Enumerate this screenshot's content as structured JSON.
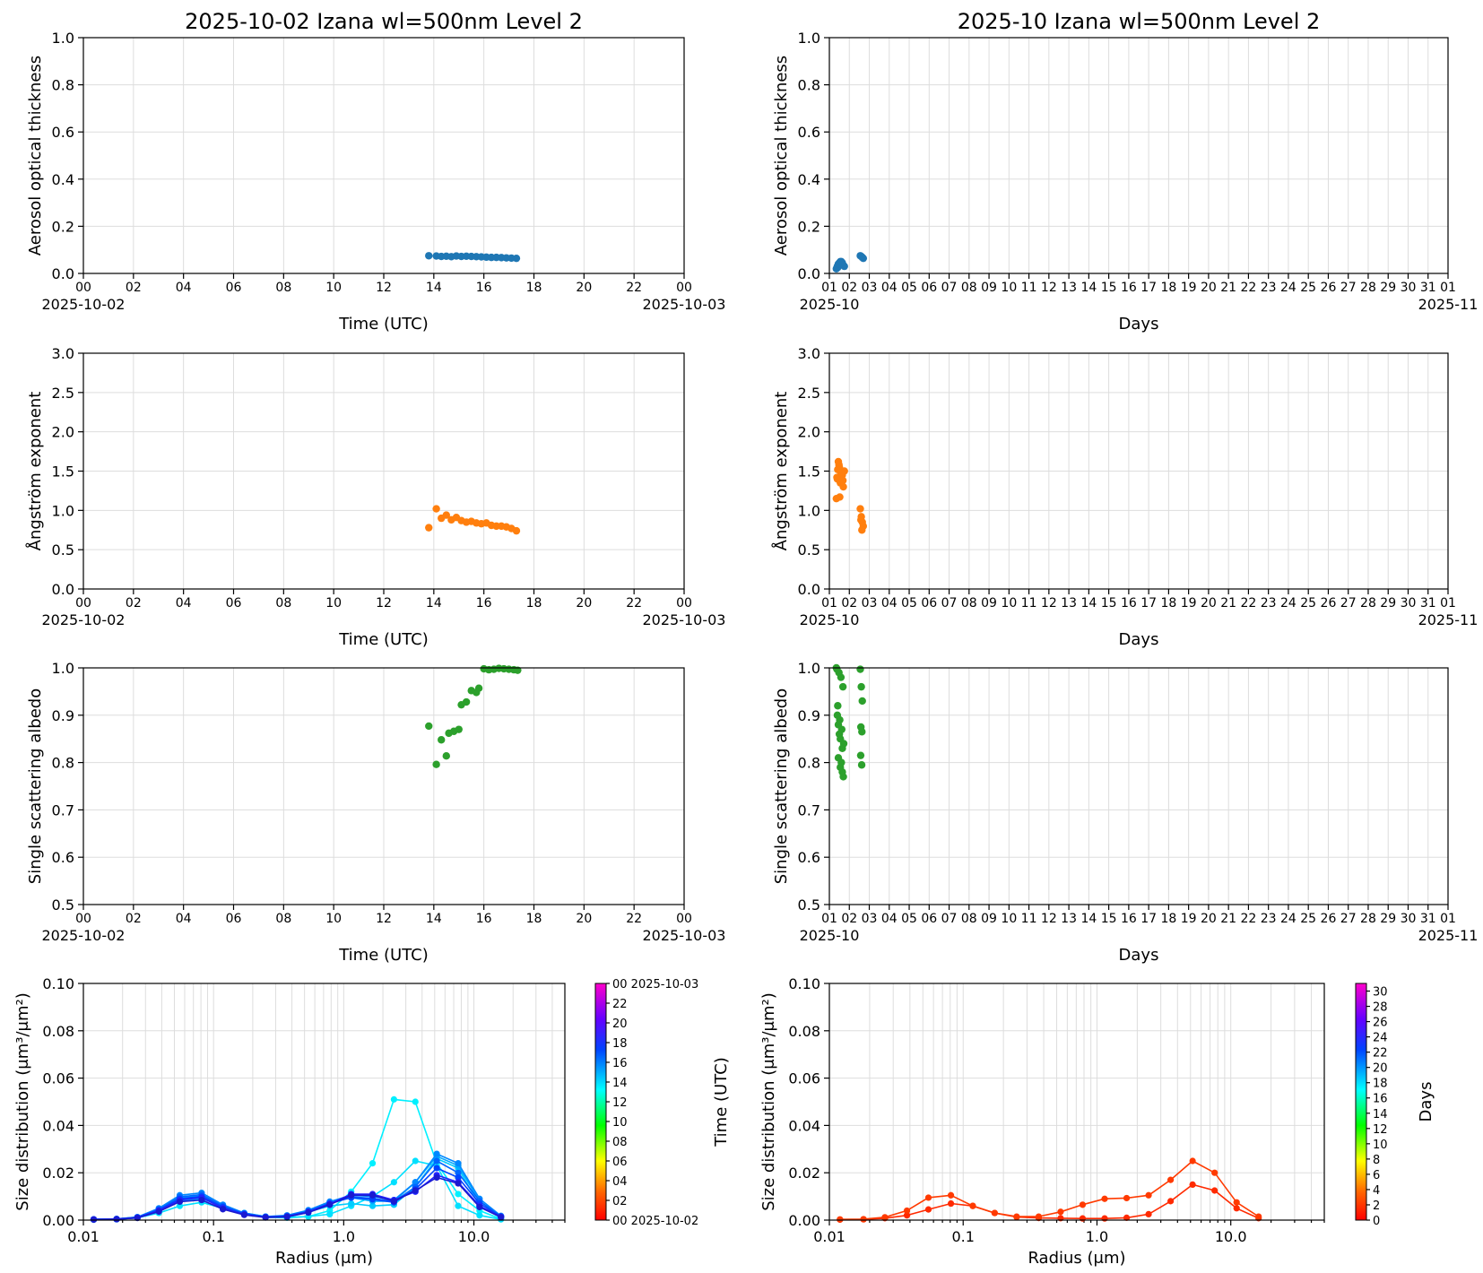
{
  "chart_data": [
    {
      "panel": "daily-aod",
      "type": "scatter",
      "title": "2025-10-02  Izana  wl=500nm  Level 2",
      "ylabel": "Aerosol optical thickness",
      "xlabel": "Time (UTC)",
      "ylim": [
        0,
        1.0
      ],
      "yticks": [
        "0.0",
        "0.2",
        "0.4",
        "0.6",
        "0.8",
        "1.0"
      ],
      "xlim": [
        0,
        24
      ],
      "xticks": [
        "00",
        "02",
        "04",
        "06",
        "08",
        "10",
        "12",
        "14",
        "16",
        "18",
        "20",
        "22",
        "00"
      ],
      "xdate_left": "2025-10-02",
      "xdate_right": "2025-10-03",
      "grid": true,
      "color": "#1f77b4",
      "series": [
        {
          "x": [
            13.8,
            14.1,
            14.3,
            14.5,
            14.7,
            14.9,
            15.1,
            15.3,
            15.5,
            15.7,
            15.9,
            16.1,
            16.3,
            16.5,
            16.7,
            16.9,
            17.1,
            17.3
          ],
          "y": [
            0.075,
            0.074,
            0.072,
            0.073,
            0.071,
            0.074,
            0.072,
            0.073,
            0.072,
            0.071,
            0.07,
            0.069,
            0.068,
            0.068,
            0.067,
            0.066,
            0.065,
            0.064
          ]
        }
      ]
    },
    {
      "panel": "monthly-aod",
      "type": "scatter",
      "title": "2025-10  Izana  wl=500nm  Level 2",
      "ylabel": "Aerosol optical thickness",
      "xlabel": "Days",
      "ylim": [
        0,
        1.0
      ],
      "yticks": [
        "0.0",
        "0.2",
        "0.4",
        "0.6",
        "0.8",
        "1.0"
      ],
      "xlim": [
        1,
        32
      ],
      "xticks": [
        "01",
        "02",
        "03",
        "04",
        "05",
        "06",
        "07",
        "08",
        "09",
        "10",
        "11",
        "12",
        "13",
        "14",
        "15",
        "16",
        "17",
        "18",
        "19",
        "20",
        "21",
        "22",
        "23",
        "24",
        "25",
        "26",
        "27",
        "28",
        "29",
        "30",
        "31",
        "01"
      ],
      "xdate_left": "2025-10",
      "xdate_right": "2025-11",
      "grid": true,
      "color": "#1f77b4",
      "series": [
        {
          "x": [
            1.35,
            1.4,
            1.45,
            1.5,
            1.55,
            1.6,
            1.65,
            1.7,
            1.75,
            1.42,
            1.52,
            1.62,
            2.55,
            2.6,
            2.65,
            2.7
          ],
          "y": [
            0.02,
            0.03,
            0.04,
            0.045,
            0.05,
            0.05,
            0.045,
            0.035,
            0.03,
            0.025,
            0.04,
            0.045,
            0.075,
            0.072,
            0.068,
            0.064
          ]
        }
      ]
    },
    {
      "panel": "daily-angstrom",
      "type": "scatter",
      "ylabel": "Ångström exponent",
      "xlabel": "Time (UTC)",
      "ylim": [
        0,
        3.0
      ],
      "yticks": [
        "0.0",
        "0.5",
        "1.0",
        "1.5",
        "2.0",
        "2.5",
        "3.0"
      ],
      "xlim": [
        0,
        24
      ],
      "xticks": [
        "00",
        "02",
        "04",
        "06",
        "08",
        "10",
        "12",
        "14",
        "16",
        "18",
        "20",
        "22",
        "00"
      ],
      "xdate_left": "2025-10-02",
      "xdate_right": "2025-10-03",
      "grid": true,
      "color": "#ff7f0e",
      "series": [
        {
          "x": [
            13.8,
            14.1,
            14.3,
            14.5,
            14.7,
            14.9,
            15.1,
            15.3,
            15.5,
            15.7,
            15.9,
            16.1,
            16.3,
            16.5,
            16.7,
            16.9,
            17.1,
            17.3
          ],
          "y": [
            0.78,
            1.02,
            0.9,
            0.94,
            0.88,
            0.91,
            0.87,
            0.85,
            0.86,
            0.84,
            0.83,
            0.84,
            0.81,
            0.8,
            0.8,
            0.79,
            0.77,
            0.74
          ]
        }
      ]
    },
    {
      "panel": "monthly-angstrom",
      "type": "scatter",
      "ylabel": "Ångström exponent",
      "xlabel": "Days",
      "ylim": [
        0,
        3.0
      ],
      "yticks": [
        "0.0",
        "0.5",
        "1.0",
        "1.5",
        "2.0",
        "2.5",
        "3.0"
      ],
      "xlim": [
        1,
        32
      ],
      "xticks": [
        "01",
        "02",
        "03",
        "04",
        "05",
        "06",
        "07",
        "08",
        "09",
        "10",
        "11",
        "12",
        "13",
        "14",
        "15",
        "16",
        "17",
        "18",
        "19",
        "20",
        "21",
        "22",
        "23",
        "24",
        "25",
        "26",
        "27",
        "28",
        "29",
        "30",
        "31",
        "01"
      ],
      "xdate_left": "2025-10",
      "xdate_right": "2025-11",
      "grid": true,
      "color": "#ff7f0e",
      "series": [
        {
          "x": [
            1.35,
            1.4,
            1.45,
            1.5,
            1.55,
            1.6,
            1.65,
            1.7,
            1.75,
            1.38,
            1.48,
            1.58,
            1.68,
            1.42,
            1.52,
            2.55,
            2.6,
            2.65,
            2.7,
            2.58,
            2.63
          ],
          "y": [
            1.15,
            1.4,
            1.62,
            1.55,
            1.35,
            1.5,
            1.45,
            1.3,
            1.5,
            1.42,
            1.58,
            1.48,
            1.38,
            1.52,
            1.17,
            1.02,
            0.92,
            0.85,
            0.8,
            0.88,
            0.75
          ]
        }
      ]
    },
    {
      "panel": "daily-ssa",
      "type": "scatter",
      "ylabel": "Single scattering albedo",
      "xlabel": "Time (UTC)",
      "ylim": [
        0.5,
        1.0
      ],
      "yticks": [
        "0.5",
        "0.6",
        "0.7",
        "0.8",
        "0.9",
        "1.0"
      ],
      "xlim": [
        0,
        24
      ],
      "xticks": [
        "00",
        "02",
        "04",
        "06",
        "08",
        "10",
        "12",
        "14",
        "16",
        "18",
        "20",
        "22",
        "00"
      ],
      "xdate_left": "2025-10-02",
      "xdate_right": "2025-10-03",
      "grid": true,
      "color": "#2ca02c",
      "series": [
        {
          "x": [
            13.8,
            14.1,
            14.3,
            14.5,
            14.6,
            14.8,
            15.0,
            15.1,
            15.3,
            15.5,
            15.7,
            15.8,
            16.0,
            16.2,
            16.4,
            16.6,
            16.8,
            17.0,
            17.2,
            17.35
          ],
          "y": [
            0.877,
            0.796,
            0.848,
            0.814,
            0.862,
            0.866,
            0.87,
            0.922,
            0.928,
            0.952,
            0.948,
            0.957,
            0.998,
            0.996,
            0.997,
            0.999,
            0.998,
            0.997,
            0.996,
            0.995
          ]
        }
      ]
    },
    {
      "panel": "monthly-ssa",
      "type": "scatter",
      "ylabel": "Single scattering albedo",
      "xlabel": "Days",
      "ylim": [
        0.5,
        1.0
      ],
      "yticks": [
        "0.5",
        "0.6",
        "0.7",
        "0.8",
        "0.9",
        "1.0"
      ],
      "xlim": [
        1,
        32
      ],
      "xticks": [
        "01",
        "02",
        "03",
        "04",
        "05",
        "06",
        "07",
        "08",
        "09",
        "10",
        "11",
        "12",
        "13",
        "14",
        "15",
        "16",
        "17",
        "18",
        "19",
        "20",
        "21",
        "22",
        "23",
        "24",
        "25",
        "26",
        "27",
        "28",
        "29",
        "30",
        "31",
        "01"
      ],
      "xdate_left": "2025-10",
      "xdate_right": "2025-11",
      "grid": true,
      "color": "#2ca02c",
      "series": [
        {
          "x": [
            1.35,
            1.4,
            1.45,
            1.5,
            1.55,
            1.6,
            1.65,
            1.7,
            1.38,
            1.48,
            1.58,
            1.68,
            1.42,
            1.52,
            1.62,
            1.72,
            1.45,
            1.55,
            1.65,
            2.55,
            2.6,
            2.65,
            2.58,
            2.63,
            2.57,
            2.62
          ],
          "y": [
            1.0,
            0.9,
            0.88,
            0.86,
            0.85,
            0.8,
            0.78,
            0.77,
            0.997,
            0.99,
            0.98,
            0.96,
            0.92,
            0.89,
            0.87,
            0.84,
            0.81,
            0.79,
            0.83,
            0.997,
            0.96,
            0.93,
            0.875,
            0.865,
            0.815,
            0.795
          ]
        }
      ]
    },
    {
      "panel": "daily-size-distribution",
      "type": "line",
      "ylabel": "Size distribution (μm³/μm²)",
      "xlabel": "Radius (μm)",
      "xscale": "log",
      "xlim": [
        0.01,
        50
      ],
      "xticks": [
        "0.01",
        "0.1",
        "1.0",
        "10.0"
      ],
      "ylim": [
        0,
        0.1
      ],
      "yticks": [
        "0.00",
        "0.02",
        "0.04",
        "0.06",
        "0.08",
        "0.10"
      ],
      "grid": true,
      "x": [
        0.012,
        0.018,
        0.026,
        0.038,
        0.055,
        0.081,
        0.118,
        0.172,
        0.251,
        0.367,
        0.535,
        0.781,
        1.141,
        1.666,
        2.432,
        3.551,
        5.185,
        7.571,
        11.055,
        16.14
      ],
      "series": [
        {
          "time": 13.8,
          "color": "#00f0ff",
          "values": [
            0.0003,
            0.0004,
            0.001,
            0.004,
            0.009,
            0.0095,
            0.006,
            0.003,
            0.0015,
            0.0012,
            0.0015,
            0.004,
            0.012,
            0.024,
            0.051,
            0.05,
            0.024,
            0.011,
            0.004,
            0.0005
          ]
        },
        {
          "time": 14.1,
          "color": "#00e0ff",
          "values": [
            0.0002,
            0.0003,
            0.001,
            0.003,
            0.006,
            0.0075,
            0.005,
            0.0025,
            0.0012,
            0.001,
            0.0015,
            0.0025,
            0.006,
            0.01,
            0.016,
            0.025,
            0.023,
            0.006,
            0.002,
            0.0003
          ]
        },
        {
          "time": 14.5,
          "color": "#00ccff",
          "values": [
            0.0002,
            0.0004,
            0.001,
            0.004,
            0.008,
            0.009,
            0.006,
            0.0025,
            0.0012,
            0.0012,
            0.0035,
            0.006,
            0.007,
            0.006,
            0.0065,
            0.014,
            0.026,
            0.022,
            0.006,
            0.001
          ]
        },
        {
          "time": 15.0,
          "color": "#00aaff",
          "values": [
            0.0003,
            0.0005,
            0.0012,
            0.0045,
            0.0095,
            0.0105,
            0.006,
            0.0028,
            0.0014,
            0.0018,
            0.004,
            0.0075,
            0.0095,
            0.008,
            0.008,
            0.016,
            0.027,
            0.023,
            0.008,
            0.0015
          ]
        },
        {
          "time": 15.5,
          "color": "#0088ff",
          "values": [
            0.0003,
            0.0005,
            0.0013,
            0.005,
            0.0105,
            0.0115,
            0.0065,
            0.003,
            0.0015,
            0.002,
            0.0042,
            0.0078,
            0.0105,
            0.01,
            0.0085,
            0.016,
            0.028,
            0.024,
            0.009,
            0.0018
          ]
        },
        {
          "time": 16.0,
          "color": "#0066ff",
          "values": [
            0.0003,
            0.0005,
            0.0012,
            0.0046,
            0.0098,
            0.0108,
            0.006,
            0.0028,
            0.0014,
            0.0018,
            0.0038,
            0.0072,
            0.0098,
            0.0092,
            0.0078,
            0.014,
            0.025,
            0.02,
            0.008,
            0.0016
          ]
        },
        {
          "time": 16.5,
          "color": "#0044ff",
          "values": [
            0.0003,
            0.0004,
            0.0011,
            0.0042,
            0.009,
            0.01,
            0.0055,
            0.0026,
            0.0013,
            0.0016,
            0.0036,
            0.007,
            0.0095,
            0.0088,
            0.0075,
            0.013,
            0.022,
            0.018,
            0.007,
            0.0015
          ]
        },
        {
          "time": 17.0,
          "color": "#2222ff",
          "values": [
            0.0003,
            0.0004,
            0.001,
            0.004,
            0.0085,
            0.0095,
            0.005,
            0.0024,
            0.0012,
            0.0015,
            0.0034,
            0.0068,
            0.011,
            0.011,
            0.0085,
            0.012,
            0.019,
            0.016,
            0.006,
            0.0014
          ]
        },
        {
          "time": 17.3,
          "color": "#1a1ad0",
          "values": [
            0.0002,
            0.0004,
            0.0009,
            0.0036,
            0.0078,
            0.0085,
            0.0046,
            0.0022,
            0.0011,
            0.0014,
            0.0032,
            0.0065,
            0.0105,
            0.0105,
            0.008,
            0.0125,
            0.018,
            0.0155,
            0.0055,
            0.0012
          ]
        }
      ],
      "colorbar": {
        "label": "Time (UTC)",
        "ticks": [
          "00 2025-10-02",
          "02",
          "04",
          "06",
          "08",
          "10",
          "12",
          "14",
          "16",
          "18",
          "20",
          "22",
          "00 2025-10-03"
        ]
      }
    },
    {
      "panel": "monthly-size-distribution",
      "type": "line",
      "ylabel": "Size distribution (μm³/μm²)",
      "xlabel": "Radius (μm)",
      "xscale": "log",
      "xlim": [
        0.01,
        50
      ],
      "xticks": [
        "0.01",
        "0.1",
        "1.0",
        "10.0"
      ],
      "ylim": [
        0,
        0.1
      ],
      "yticks": [
        "0.00",
        "0.02",
        "0.04",
        "0.06",
        "0.08",
        "0.10"
      ],
      "grid": true,
      "x": [
        0.012,
        0.018,
        0.026,
        0.038,
        0.055,
        0.081,
        0.118,
        0.172,
        0.251,
        0.367,
        0.535,
        0.781,
        1.141,
        1.666,
        2.432,
        3.551,
        5.185,
        7.571,
        11.055,
        16.14
      ],
      "series": [
        {
          "day": 1,
          "color": "#ff2a00",
          "values": [
            0.0002,
            0.0003,
            0.0008,
            0.002,
            0.0045,
            0.007,
            0.006,
            0.003,
            0.0013,
            0.0009,
            0.0008,
            0.0007,
            0.0007,
            0.001,
            0.0025,
            0.008,
            0.015,
            0.0125,
            0.005,
            0.0008
          ]
        },
        {
          "day": 2,
          "color": "#ff3a00",
          "values": [
            0.0003,
            0.0004,
            0.0012,
            0.004,
            0.0095,
            0.0105,
            0.006,
            0.003,
            0.0015,
            0.0015,
            0.0035,
            0.0065,
            0.009,
            0.0093,
            0.0105,
            0.017,
            0.025,
            0.02,
            0.0075,
            0.0015
          ]
        }
      ],
      "colorbar": {
        "label": "Days",
        "ticks": [
          "0",
          "2",
          "4",
          "6",
          "8",
          "10",
          "12",
          "14",
          "16",
          "18",
          "20",
          "22",
          "24",
          "26",
          "28",
          "30"
        ]
      }
    }
  ]
}
